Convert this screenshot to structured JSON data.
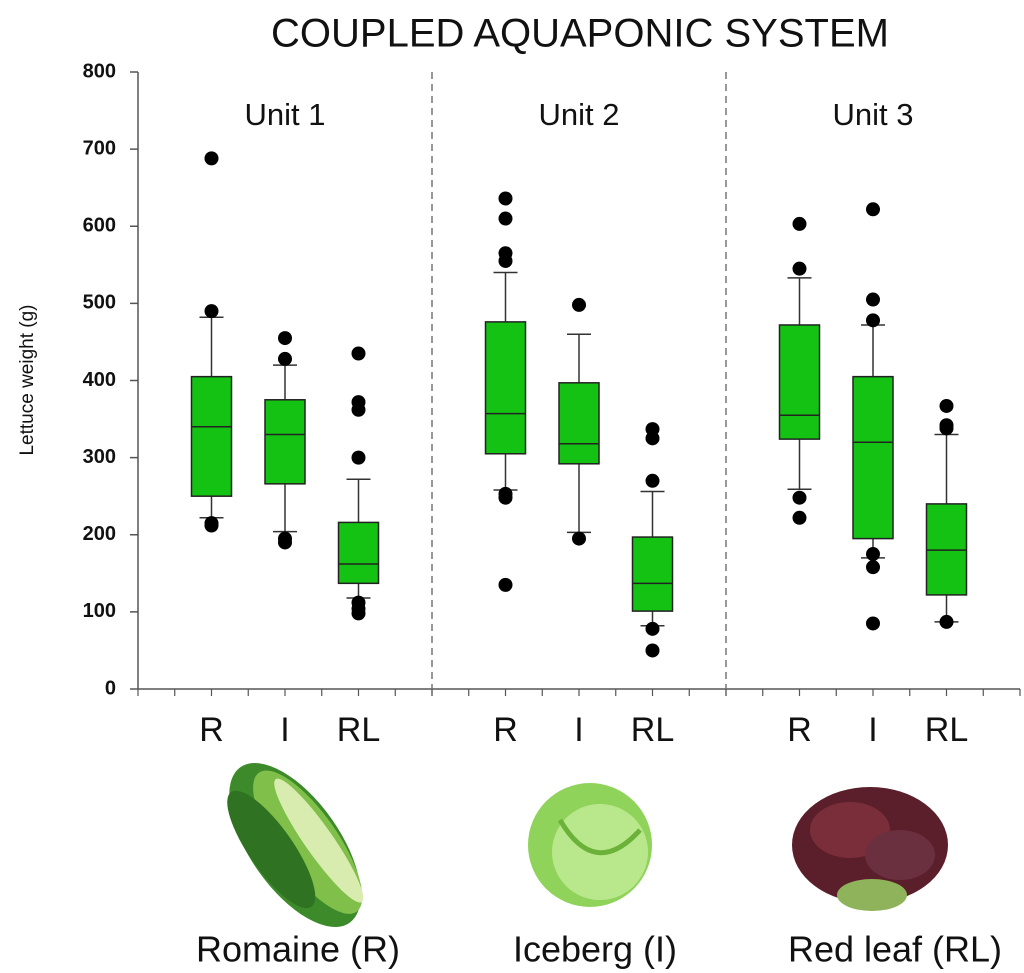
{
  "chart_data": {
    "type": "box",
    "title": "COUPLED AQUAPONIC SYSTEM",
    "ylabel": "Lettuce weight (g)",
    "ylim": [
      0,
      800
    ],
    "yticks": [
      0,
      100,
      200,
      300,
      400,
      500,
      600,
      700,
      800
    ],
    "color": "#14c214",
    "panels": [
      {
        "title": "Unit 1",
        "categories": [
          "R",
          "I",
          "RL"
        ],
        "boxes": [
          {
            "whislo": 222,
            "q1": 250,
            "med": 340,
            "q3": 405,
            "whishi": 482,
            "fliers": [
              688,
              490,
              215,
              212
            ]
          },
          {
            "whislo": 204,
            "q1": 266,
            "med": 330,
            "q3": 375,
            "whishi": 420,
            "fliers": [
              455,
              428,
              195,
              190
            ]
          },
          {
            "whislo": 118,
            "q1": 137,
            "med": 162,
            "q3": 216,
            "whishi": 272,
            "fliers": [
              435,
              372,
              362,
              300,
              112,
              104,
              98
            ]
          }
        ]
      },
      {
        "title": "Unit 2",
        "categories": [
          "R",
          "I",
          "RL"
        ],
        "boxes": [
          {
            "whislo": 258,
            "q1": 305,
            "med": 357,
            "q3": 476,
            "whishi": 540,
            "fliers": [
              636,
              610,
              565,
              555,
              253,
              248,
              135
            ]
          },
          {
            "whislo": 203,
            "q1": 292,
            "med": 318,
            "q3": 397,
            "whishi": 460,
            "fliers": [
              498,
              195
            ]
          },
          {
            "whislo": 82,
            "q1": 101,
            "med": 137,
            "q3": 197,
            "whishi": 256,
            "fliers": [
              337,
              325,
              270,
              78,
              50
            ]
          }
        ]
      },
      {
        "title": "Unit 3",
        "categories": [
          "R",
          "I",
          "RL"
        ],
        "boxes": [
          {
            "whislo": 259,
            "q1": 324,
            "med": 355,
            "q3": 472,
            "whishi": 533,
            "fliers": [
              603,
              545,
              248,
              222
            ]
          },
          {
            "whislo": 170,
            "q1": 195,
            "med": 320,
            "q3": 405,
            "whishi": 472,
            "fliers": [
              622,
              505,
              478,
              175,
              158,
              85
            ]
          },
          {
            "whislo": 87,
            "q1": 122,
            "med": 180,
            "q3": 240,
            "whishi": 330,
            "fliers": [
              367,
              342,
              338,
              87
            ]
          }
        ]
      }
    ]
  },
  "captions": [
    "Romaine (R)",
    "Iceberg (I)",
    "Red leaf (RL)"
  ]
}
